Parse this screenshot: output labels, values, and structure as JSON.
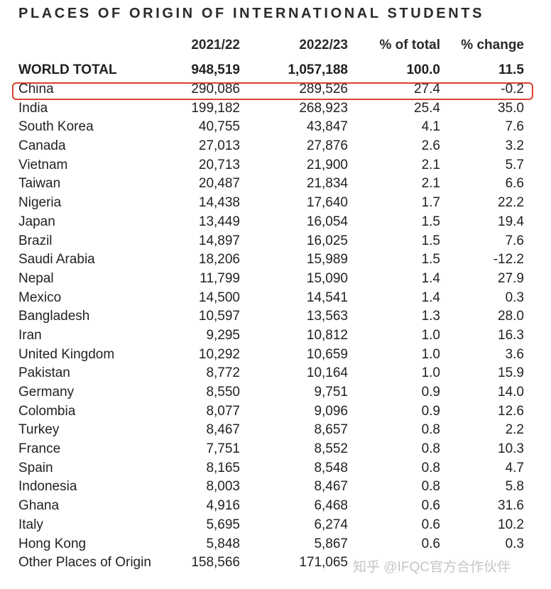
{
  "chart_data": {
    "type": "table",
    "title": "PLACES OF ORIGIN OF INTERNATIONAL STUDENTS",
    "columns": [
      "",
      "2021/22",
      "2022/23",
      "% of total",
      "% change"
    ],
    "total": {
      "name": "WORLD TOTAL",
      "y2021": "948,519",
      "y2022": "1,057,188",
      "pct_total": "100.0",
      "pct_change": "11.5"
    },
    "rows": [
      {
        "name": "China",
        "y2021": "290,086",
        "y2022": "289,526",
        "pct_total": "27.4",
        "pct_change": "-0.2",
        "highlighted": true
      },
      {
        "name": "India",
        "y2021": "199,182",
        "y2022": "268,923",
        "pct_total": "25.4",
        "pct_change": "35.0"
      },
      {
        "name": "South Korea",
        "y2021": "40,755",
        "y2022": "43,847",
        "pct_total": "4.1",
        "pct_change": "7.6"
      },
      {
        "name": "Canada",
        "y2021": "27,013",
        "y2022": "27,876",
        "pct_total": "2.6",
        "pct_change": "3.2"
      },
      {
        "name": "Vietnam",
        "y2021": "20,713",
        "y2022": "21,900",
        "pct_total": "2.1",
        "pct_change": "5.7"
      },
      {
        "name": "Taiwan",
        "y2021": "20,487",
        "y2022": "21,834",
        "pct_total": "2.1",
        "pct_change": "6.6"
      },
      {
        "name": "Nigeria",
        "y2021": "14,438",
        "y2022": "17,640",
        "pct_total": "1.7",
        "pct_change": "22.2"
      },
      {
        "name": "Japan",
        "y2021": "13,449",
        "y2022": "16,054",
        "pct_total": "1.5",
        "pct_change": "19.4"
      },
      {
        "name": "Brazil",
        "y2021": "14,897",
        "y2022": "16,025",
        "pct_total": "1.5",
        "pct_change": "7.6"
      },
      {
        "name": "Saudi Arabia",
        "y2021": "18,206",
        "y2022": "15,989",
        "pct_total": "1.5",
        "pct_change": "-12.2"
      },
      {
        "name": "Nepal",
        "y2021": "11,799",
        "y2022": "15,090",
        "pct_total": "1.4",
        "pct_change": "27.9"
      },
      {
        "name": "Mexico",
        "y2021": "14,500",
        "y2022": "14,541",
        "pct_total": "1.4",
        "pct_change": "0.3"
      },
      {
        "name": "Bangladesh",
        "y2021": "10,597",
        "y2022": "13,563",
        "pct_total": "1.3",
        "pct_change": "28.0"
      },
      {
        "name": "Iran",
        "y2021": "9,295",
        "y2022": "10,812",
        "pct_total": "1.0",
        "pct_change": "16.3"
      },
      {
        "name": "United Kingdom",
        "y2021": "10,292",
        "y2022": "10,659",
        "pct_total": "1.0",
        "pct_change": "3.6"
      },
      {
        "name": "Pakistan",
        "y2021": "8,772",
        "y2022": "10,164",
        "pct_total": "1.0",
        "pct_change": "15.9"
      },
      {
        "name": "Germany",
        "y2021": "8,550",
        "y2022": "9,751",
        "pct_total": "0.9",
        "pct_change": "14.0"
      },
      {
        "name": "Colombia",
        "y2021": "8,077",
        "y2022": "9,096",
        "pct_total": "0.9",
        "pct_change": "12.6"
      },
      {
        "name": "Turkey",
        "y2021": "8,467",
        "y2022": "8,657",
        "pct_total": "0.8",
        "pct_change": "2.2"
      },
      {
        "name": "France",
        "y2021": "7,751",
        "y2022": "8,552",
        "pct_total": "0.8",
        "pct_change": "10.3"
      },
      {
        "name": "Spain",
        "y2021": "8,165",
        "y2022": "8,548",
        "pct_total": "0.8",
        "pct_change": "4.7"
      },
      {
        "name": "Indonesia",
        "y2021": "8,003",
        "y2022": "8,467",
        "pct_total": "0.8",
        "pct_change": "5.8"
      },
      {
        "name": "Ghana",
        "y2021": "4,916",
        "y2022": "6,468",
        "pct_total": "0.6",
        "pct_change": "31.6"
      },
      {
        "name": "Italy",
        "y2021": "5,695",
        "y2022": "6,274",
        "pct_total": "0.6",
        "pct_change": "10.2"
      },
      {
        "name": "Hong Kong",
        "y2021": "5,848",
        "y2022": "5,867",
        "pct_total": "0.6",
        "pct_change": "0.3"
      },
      {
        "name": "Other Places of Origin",
        "y2021": "158,566",
        "y2022": "171,065",
        "pct_total": "",
        "pct_change": ""
      }
    ],
    "highlight_color": "#d9432f"
  },
  "watermark": {
    "text": "知乎 @IFQC官方合作伙伴"
  }
}
